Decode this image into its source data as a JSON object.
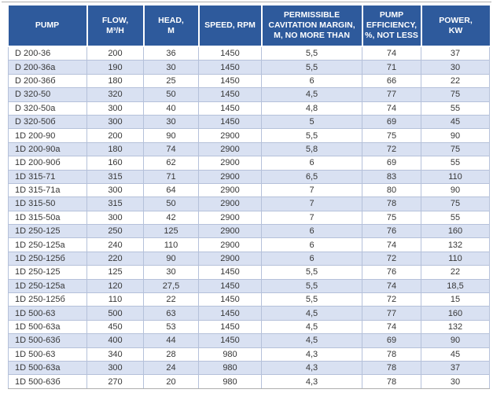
{
  "table": {
    "title": "pump-specifications",
    "columns": [
      "PUMP",
      "FLOW,\nM³/H",
      "HEAD,\nM",
      "SPEED, RPM",
      "PERMISSIBLE\nCAVITATION MARGIN,\nM, NO MORE THAN",
      "PUMP\nEFFICIENCY,\n%, NOT LESS",
      "POWER,\nKW"
    ],
    "rows": [
      [
        "D 200-36",
        "200",
        "36",
        "1450",
        "5,5",
        "74",
        "37"
      ],
      [
        "D 200-36a",
        "190",
        "30",
        "1450",
        "5,5",
        "71",
        "30"
      ],
      [
        "D 200-36б",
        "180",
        "25",
        "1450",
        "6",
        "66",
        "22"
      ],
      [
        "D 320-50",
        "320",
        "50",
        "1450",
        "4,5",
        "77",
        "75"
      ],
      [
        "D 320-50a",
        "300",
        "40",
        "1450",
        "4,8",
        "74",
        "55"
      ],
      [
        "D 320-50б",
        "300",
        "30",
        "1450",
        "5",
        "69",
        "45"
      ],
      [
        "1D 200-90",
        "200",
        "90",
        "2900",
        "5,5",
        "75",
        "90"
      ],
      [
        "1D 200-90a",
        "180",
        "74",
        "2900",
        "5,8",
        "72",
        "75"
      ],
      [
        "1D 200-90б",
        "160",
        "62",
        "2900",
        "6",
        "69",
        "55"
      ],
      [
        "1D 315-71",
        "315",
        "71",
        "2900",
        "6,5",
        "83",
        "110"
      ],
      [
        "1D 315-71a",
        "300",
        "64",
        "2900",
        "7",
        "80",
        "90"
      ],
      [
        "1D 315-50",
        "315",
        "50",
        "2900",
        "7",
        "78",
        "75"
      ],
      [
        "1D 315-50a",
        "300",
        "42",
        "2900",
        "7",
        "75",
        "55"
      ],
      [
        "1D 250-125",
        "250",
        "125",
        "2900",
        "6",
        "76",
        "160"
      ],
      [
        "1D 250-125a",
        "240",
        "110",
        "2900",
        "6",
        "74",
        "132"
      ],
      [
        "1D 250-125б",
        "220",
        "90",
        "2900",
        "6",
        "72",
        "110"
      ],
      [
        "1D 250-125",
        "125",
        "30",
        "1450",
        "5,5",
        "76",
        "22"
      ],
      [
        "1D 250-125a",
        "120",
        "27,5",
        "1450",
        "5,5",
        "74",
        "18,5"
      ],
      [
        "1D 250-125б",
        "110",
        "22",
        "1450",
        "5,5",
        "72",
        "15"
      ],
      [
        "1D 500-63",
        "500",
        "63",
        "1450",
        "4,5",
        "77",
        "160"
      ],
      [
        "1D 500-63a",
        "450",
        "53",
        "1450",
        "4,5",
        "74",
        "132"
      ],
      [
        "1D 500-63б",
        "400",
        "44",
        "1450",
        "4,5",
        "69",
        "90"
      ],
      [
        "1D 500-63",
        "340",
        "28",
        "980",
        "4,3",
        "78",
        "45"
      ],
      [
        "1D 500-63a",
        "300",
        "24",
        "980",
        "4,3",
        "78",
        "37"
      ],
      [
        "1D 500-63б",
        "270",
        "20",
        "980",
        "4,3",
        "78",
        "30"
      ]
    ]
  },
  "colors": {
    "header_bg": "#2E5A9C",
    "header_text": "#FFFFFF",
    "row_bg": "#FFFFFF",
    "row_stripe_bg": "#D9E1F2",
    "cell_border": "#B5C1DA",
    "outer_rule": "#AFAFAF",
    "body_text": "#373737",
    "page_bg": "#FFFFFF"
  }
}
